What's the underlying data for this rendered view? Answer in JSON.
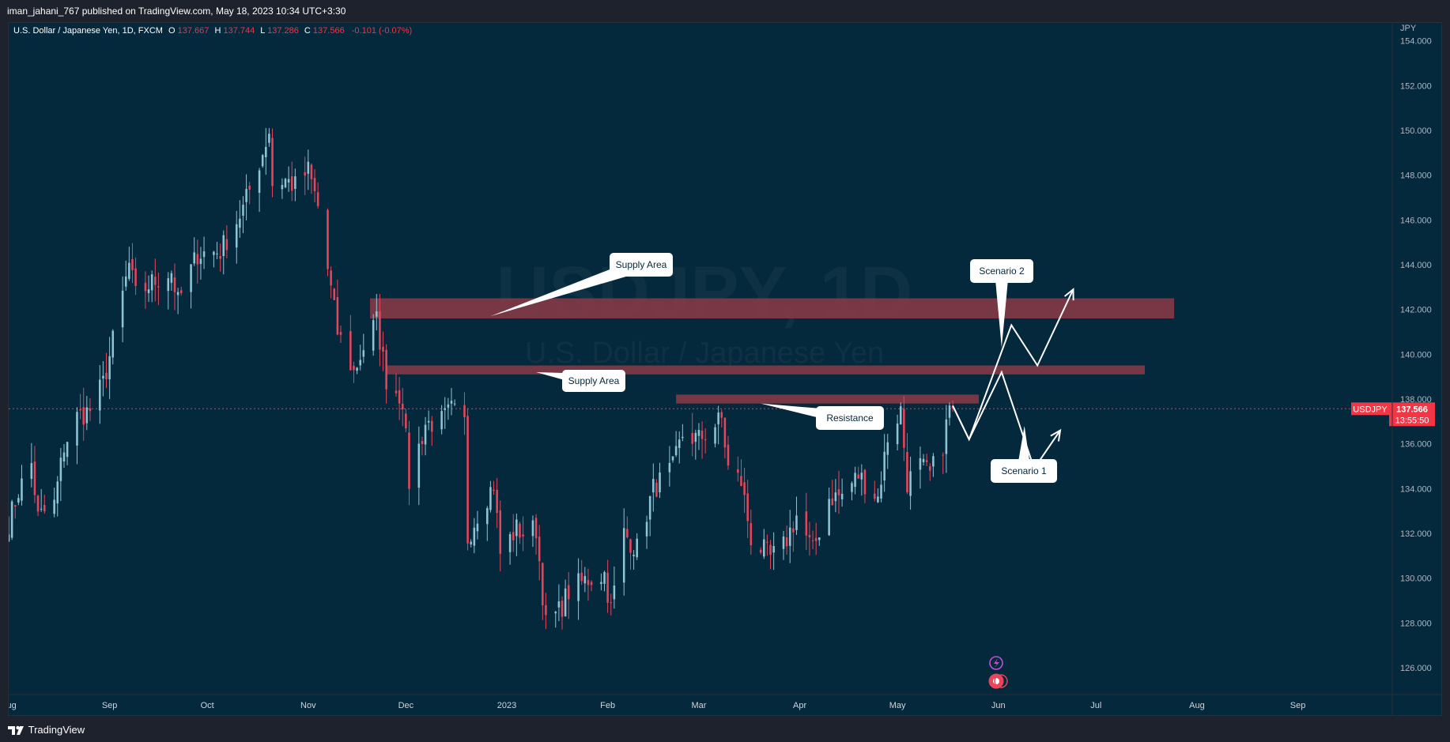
{
  "header": {
    "published_line": "iman_jahani_767 published on TradingView.com, May 18, 2023 10:34 UTC+3:30"
  },
  "footer": {
    "logo_text": "TradingView"
  },
  "colors": {
    "background": "#04283c",
    "up": "#8ec5d6",
    "down": "#e8455a",
    "zone": "#8c3a47",
    "last_price_badge": "#f23645",
    "annotation_bg": "#ffffff",
    "annotation_text": "#04283c"
  },
  "chart_data": {
    "type": "candlestick",
    "symbol_line": {
      "name": "U.S. Dollar / Japanese Yen, 1D, FXCM",
      "open_label": "O",
      "open": "137.667",
      "high_label": "H",
      "high": "137.744",
      "low_label": "L",
      "low": "137.286",
      "close_label": "C",
      "close": "137.566",
      "change": "-0.101 (-0.07%)"
    },
    "watermark": {
      "ticker": "USDJPY, 1D",
      "name": "U.S. Dollar / Japanese Yen"
    },
    "currency": "JPY",
    "ylim": [
      124.8,
      154.8
    ],
    "y_ticks": [
      "154.000",
      "152.000",
      "150.000",
      "148.000",
      "146.000",
      "144.000",
      "142.000",
      "140.000",
      "138.000",
      "136.000",
      "134.000",
      "132.000",
      "130.000",
      "128.000",
      "126.000"
    ],
    "x_ticks": [
      "Aug",
      "Sep",
      "Oct",
      "Nov",
      "Dec",
      "2023",
      "Feb",
      "Mar",
      "Apr",
      "May",
      "Jun",
      "Jul",
      "Aug",
      "Sep"
    ],
    "x_range": [
      "2022-08-01",
      "2023-09-30"
    ],
    "last_price": {
      "symbol": "USDJPY",
      "price": "137.566",
      "price_value": 137.566,
      "countdown": "13:55:50"
    },
    "price_path": [
      [
        "2022-08-01",
        132.5
      ],
      [
        "2022-08-04",
        133.9
      ],
      [
        "2022-08-08",
        135.1
      ],
      [
        "2022-08-10",
        132.7
      ],
      [
        "2022-08-15",
        133.3
      ],
      [
        "2022-08-18",
        135.9
      ],
      [
        "2022-08-22",
        137.2
      ],
      [
        "2022-08-26",
        137.5
      ],
      [
        "2022-08-30",
        138.7
      ],
      [
        "2022-09-01",
        139.9
      ],
      [
        "2022-09-07",
        144.0
      ],
      [
        "2022-09-09",
        142.6
      ],
      [
        "2022-09-14",
        143.2
      ],
      [
        "2022-09-20",
        143.7
      ],
      [
        "2022-09-22",
        142.3
      ],
      [
        "2022-09-28",
        144.5
      ],
      [
        "2022-10-05",
        144.6
      ],
      [
        "2022-10-12",
        146.5
      ],
      [
        "2022-10-18",
        149.0
      ],
      [
        "2022-10-20",
        150.0
      ],
      [
        "2022-10-21",
        147.6
      ],
      [
        "2022-10-25",
        147.8
      ],
      [
        "2022-10-28",
        147.5
      ],
      [
        "2022-11-01",
        148.2
      ],
      [
        "2022-11-04",
        146.6
      ],
      [
        "2022-11-10",
        141.0
      ],
      [
        "2022-11-15",
        139.2
      ],
      [
        "2022-11-18",
        140.3
      ],
      [
        "2022-11-22",
        141.5
      ],
      [
        "2022-11-25",
        138.9
      ],
      [
        "2022-11-30",
        138.0
      ],
      [
        "2022-12-02",
        134.3
      ],
      [
        "2022-12-07",
        136.9
      ],
      [
        "2022-12-12",
        137.0
      ],
      [
        "2022-12-15",
        137.5
      ],
      [
        "2022-12-19",
        136.9
      ],
      [
        "2022-12-20",
        131.8
      ],
      [
        "2022-12-23",
        132.9
      ],
      [
        "2022-12-28",
        134.2
      ],
      [
        "2022-12-30",
        131.1
      ],
      [
        "2023-01-04",
        132.2
      ],
      [
        "2023-01-06",
        132.0
      ],
      [
        "2023-01-10",
        132.2
      ],
      [
        "2023-01-13",
        127.9
      ],
      [
        "2023-01-17",
        128.5
      ],
      [
        "2023-01-20",
        129.4
      ],
      [
        "2023-01-25",
        129.9
      ],
      [
        "2023-01-31",
        130.2
      ],
      [
        "2023-02-02",
        128.6
      ],
      [
        "2023-02-06",
        132.0
      ],
      [
        "2023-02-10",
        131.3
      ],
      [
        "2023-02-15",
        134.0
      ],
      [
        "2023-02-21",
        134.9
      ],
      [
        "2023-02-24",
        136.4
      ],
      [
        "2023-03-01",
        136.2
      ],
      [
        "2023-03-08",
        137.1
      ],
      [
        "2023-03-10",
        134.9
      ],
      [
        "2023-03-14",
        134.3
      ],
      [
        "2023-03-17",
        131.8
      ],
      [
        "2023-03-23",
        130.9
      ],
      [
        "2023-03-27",
        131.4
      ],
      [
        "2023-03-31",
        132.8
      ],
      [
        "2023-04-05",
        131.2
      ],
      [
        "2023-04-10",
        133.6
      ],
      [
        "2023-04-14",
        133.7
      ],
      [
        "2023-04-19",
        134.6
      ],
      [
        "2023-04-25",
        133.6
      ],
      [
        "2023-04-28",
        136.3
      ],
      [
        "2023-05-02",
        137.5
      ],
      [
        "2023-05-04",
        134.3
      ],
      [
        "2023-05-08",
        135.0
      ],
      [
        "2023-05-11",
        134.6
      ],
      [
        "2023-05-15",
        136.0
      ],
      [
        "2023-05-17",
        137.6
      ],
      [
        "2023-05-18",
        137.566
      ]
    ],
    "zones": [
      {
        "label": "Supply Area",
        "from": "2022-11-20",
        "to": "2023-07-25",
        "low": 141.6,
        "high": 142.5
      },
      {
        "label": "Supply Area",
        "from": "2022-11-25",
        "to": "2023-07-16",
        "low": 139.1,
        "high": 139.5
      },
      {
        "label": "Resistance",
        "from": "2023-02-22",
        "to": "2023-05-26",
        "low": 137.8,
        "high": 138.2
      }
    ],
    "scenarios": [
      {
        "label": "Scenario 1",
        "path": [
          [
            "2023-05-18",
            137.7
          ],
          [
            "2023-05-23",
            136.2
          ],
          [
            "2023-06-02",
            139.2
          ],
          [
            "2023-06-12",
            134.9
          ],
          [
            "2023-06-20",
            136.6
          ]
        ]
      },
      {
        "label": "Scenario 2",
        "path": [
          [
            "2023-05-18",
            137.7
          ],
          [
            "2023-05-23",
            136.2
          ],
          [
            "2023-06-05",
            141.3
          ],
          [
            "2023-06-13",
            139.5
          ],
          [
            "2023-06-24",
            142.9
          ]
        ]
      }
    ],
    "annotations": [
      {
        "text": "Supply Area",
        "pointer": [
          "2022-12-27",
          141.7
        ]
      },
      {
        "text": "Supply Area",
        "pointer": [
          "2023-01-10",
          139.2
        ]
      },
      {
        "text": "Resistance",
        "pointer": [
          "2023-03-20",
          137.8
        ]
      },
      {
        "text": "Scenario 2",
        "pointer": [
          "2023-06-02",
          140.3
        ]
      },
      {
        "text": "Scenario 1",
        "pointer": [
          "2023-06-09",
          136.8
        ]
      }
    ]
  }
}
